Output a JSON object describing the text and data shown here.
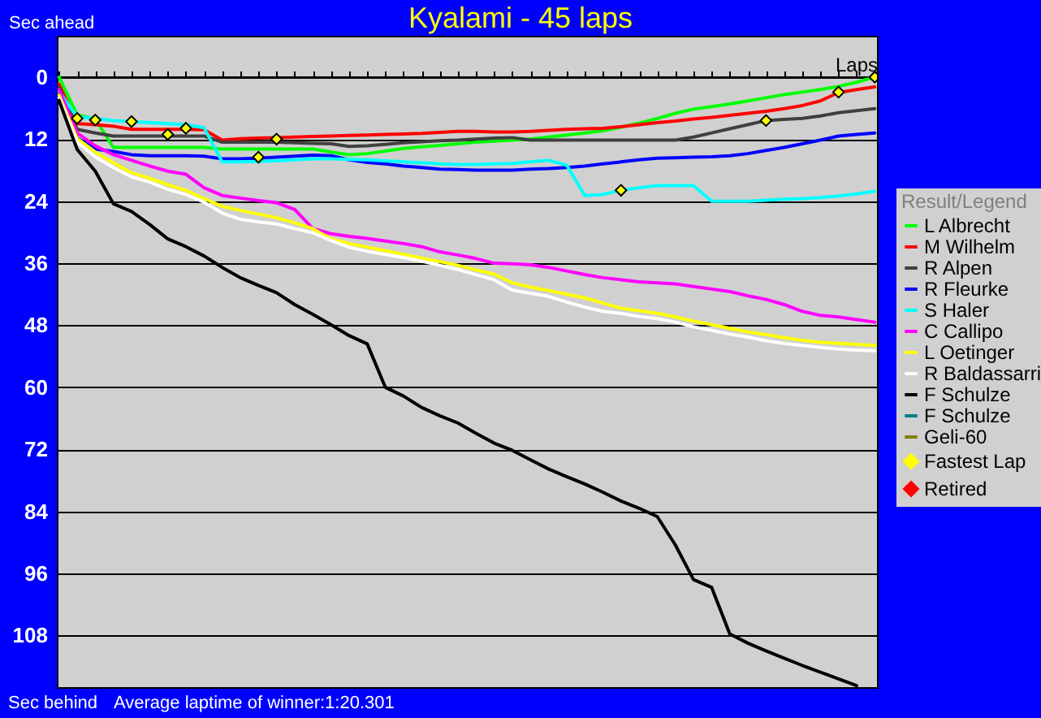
{
  "chart_data": {
    "type": "line",
    "title": "Kyalami - 45 laps",
    "ylabel": "Sec ahead",
    "xlabel": "Laps",
    "legend_title": "Result/Legend",
    "annotations": [
      "Sec behind",
      "Average laptime of winner:1:20.301"
    ],
    "categories": [
      null,
      null,
      null,
      null,
      null,
      null,
      null,
      null,
      null,
      null,
      null,
      null,
      null,
      null,
      null,
      null,
      null,
      null,
      null,
      null,
      null,
      null,
      null,
      null,
      null,
      null,
      null,
      null,
      null,
      null,
      null,
      null,
      null,
      null,
      null,
      null,
      null,
      null,
      null,
      null,
      null,
      null,
      null,
      null,
      null,
      null
    ],
    "ylim": [
      118,
      -8
    ],
    "yticks": [
      0,
      12,
      24,
      36,
      48,
      60,
      72,
      84,
      96,
      108
    ],
    "grid": "y",
    "legend": "right",
    "line_style": "solid",
    "series": [
      {
        "name": "L Albrecht",
        "color": "#00ff00",
        "values": [
          0,
          7.3,
          8.1,
          13.6,
          13.6,
          13.6,
          13.6,
          13.6,
          13.6,
          13.9,
          13.9,
          13.9,
          13.9,
          13.9,
          13.9,
          14.5,
          15,
          14.8,
          14.3,
          13.8,
          13.5,
          13.2,
          12.9,
          12.6,
          12.4,
          12.2,
          12,
          11.6,
          11.2,
          10.8,
          10.4,
          9.7,
          8.9,
          8,
          7,
          6.2,
          5.7,
          5.2,
          4.6,
          4,
          3.4,
          2.9,
          2.4,
          1.8,
          1,
          0
        ]
      },
      {
        "name": "M Wilhelm",
        "color": "#ff0000",
        "values": [
          1.4,
          9,
          9.2,
          9.5,
          10.1,
          10.1,
          10.1,
          10.1,
          10.2,
          12.2,
          11.9,
          11.8,
          11.7,
          11.6,
          11.5,
          11.4,
          11.3,
          11.2,
          11.1,
          11,
          10.9,
          10.7,
          10.5,
          10.5,
          10.6,
          10.6,
          10.5,
          10.3,
          10.1,
          10,
          9.9,
          9.6,
          9.2,
          8.8,
          8.5,
          8.1,
          7.8,
          7.4,
          7,
          6.6,
          6.1,
          5.5,
          4.6,
          3,
          2.4,
          1.9
        ]
      },
      {
        "name": "R Alpen",
        "color": "#404040",
        "values": [
          2,
          10.1,
          10.8,
          11.4,
          11.4,
          11.4,
          11.4,
          11.4,
          11.4,
          12.6,
          12.6,
          12.6,
          12.6,
          12.7,
          12.8,
          12.9,
          13.4,
          13.3,
          13,
          12.7,
          12.5,
          12.3,
          12.2,
          12,
          11.8,
          11.7,
          12.2,
          12.2,
          12.2,
          12.2,
          12.2,
          12.2,
          12.2,
          12.2,
          12.2,
          11.6,
          10.8,
          10,
          9.2,
          8.4,
          8.2,
          8,
          7.5,
          6.9,
          6.5,
          6.1
        ]
      },
      {
        "name": "R Fleurke",
        "color": "#0000ff",
        "values": [
          2.4,
          11.8,
          13.9,
          14.4,
          15,
          15.2,
          15.2,
          15.2,
          15.3,
          15.8,
          15.8,
          15.7,
          15.5,
          15.3,
          15.1,
          15.2,
          16,
          16.5,
          16.8,
          17.2,
          17.5,
          17.8,
          17.9,
          18,
          18,
          18,
          17.8,
          17.7,
          17.5,
          17.2,
          16.8,
          16.4,
          16,
          15.7,
          15.6,
          15.5,
          15.4,
          15.2,
          14.8,
          14.2,
          13.6,
          12.9,
          12.2,
          11.4,
          11.1,
          10.8
        ]
      },
      {
        "name": "S Haler",
        "color": "#00ffff",
        "values": [
          2.8,
          7.7,
          8,
          8.4,
          8.6,
          8.8,
          9,
          9.2,
          9.8,
          16.4,
          16.4,
          16.3,
          16.2,
          16,
          15.8,
          15.8,
          15.9,
          16,
          16.2,
          16.4,
          16.6,
          16.8,
          16.9,
          16.9,
          16.8,
          16.7,
          16.4,
          16.1,
          17,
          22.9,
          22.7,
          21.9,
          21.4,
          21,
          21,
          21,
          24,
          24,
          24,
          23.8,
          23.6,
          23.5,
          23.3,
          23,
          22.6,
          22.1
        ]
      },
      {
        "name": "C Callipo",
        "color": "#ff00ff",
        "values": [
          2.4,
          10.8,
          13.3,
          15,
          16.1,
          17.2,
          18.2,
          18.8,
          21.4,
          22.9,
          23.4,
          23.9,
          24.3,
          25.6,
          29.3,
          30.3,
          30.8,
          31.2,
          31.7,
          32.2,
          32.8,
          33.8,
          34.4,
          35.1,
          36,
          36.1,
          36.3,
          36.8,
          37.5,
          38.2,
          38.8,
          39.2,
          39.6,
          39.8,
          40,
          40.5,
          41,
          41.5,
          42.3,
          43,
          44,
          45.3,
          46.1,
          46.4,
          46.9,
          47.4
        ]
      },
      {
        "name": "L Oetinger",
        "color": "#ffff00",
        "values": [
          3.5,
          11.9,
          14.5,
          16.6,
          18.5,
          19.6,
          20.8,
          21.9,
          23.5,
          25,
          25.8,
          26.5,
          27.2,
          28.2,
          29.3,
          31.3,
          32.2,
          32.9,
          33.6,
          34.3,
          35,
          35.7,
          36.4,
          37.3,
          38.1,
          39.8,
          40.6,
          41.3,
          42,
          42.7,
          43.7,
          44.7,
          45.2,
          45.7,
          46.4,
          47.2,
          47.9,
          48.6,
          49.3,
          49.8,
          50.4,
          50.9,
          51.3,
          51.5,
          51.7,
          51.9
        ]
      },
      {
        "name": "R Baldassarri",
        "color": "#ffffff",
        "values": [
          4,
          12.6,
          15.4,
          17.5,
          19.3,
          20.3,
          21.7,
          22.7,
          24.2,
          26.3,
          27.5,
          28,
          28.4,
          29.3,
          30.1,
          31.6,
          32.9,
          33.7,
          34.3,
          34.9,
          35.6,
          36.4,
          37.2,
          38.2,
          39.2,
          41.2,
          41.8,
          42.4,
          43.5,
          44.5,
          45.3,
          45.7,
          46.3,
          46.7,
          47.4,
          48.3,
          49,
          49.7,
          50.3,
          51,
          51.5,
          51.9,
          52.3,
          52.6,
          52.8,
          52.9
        ]
      },
      {
        "name": "F Schulze",
        "color": "#000000",
        "values": [
          4.5,
          14,
          18.2,
          24.5,
          26,
          28.5,
          31.3,
          32.8,
          34.6,
          36.8,
          38.8,
          40.3,
          41.7,
          44,
          45.9,
          47.9,
          50,
          51.6,
          60,
          61.7,
          63.9,
          65.5,
          66.9,
          68.9,
          70.8,
          72.2,
          74,
          75.8,
          77.3,
          78.7,
          80.3,
          82,
          83.4,
          85,
          90.5,
          97.2,
          98.7,
          107.7,
          109.5,
          111,
          112.4,
          113.8,
          115.1,
          116.4,
          117.7,
          null
        ]
      },
      {
        "name": "F Schulze",
        "color": "#008080",
        "values": [
          null,
          null,
          null,
          null,
          null,
          null,
          null,
          null,
          null,
          null,
          null,
          null,
          null,
          null,
          null,
          null,
          null,
          null,
          null,
          null,
          null,
          null,
          null,
          null,
          null,
          null,
          null,
          null,
          null,
          null,
          null,
          null,
          null,
          null,
          null,
          null,
          null,
          null,
          null,
          null,
          null,
          null,
          null,
          null,
          null,
          null
        ]
      },
      {
        "name": "Geli-60",
        "color": "#808000",
        "values": [
          null,
          null,
          null,
          null,
          null,
          null,
          null,
          null,
          null,
          null,
          null,
          null,
          null,
          null,
          null,
          null,
          null,
          null,
          null,
          null,
          null,
          null,
          null,
          null,
          null,
          null,
          null,
          null,
          null,
          null,
          null,
          null,
          null,
          null,
          null,
          null,
          null,
          null,
          null,
          null,
          null,
          null,
          null,
          null,
          null,
          null
        ]
      },
      {
        "name": "Fastest Lap",
        "type": "scatter",
        "marker": "diamond",
        "color": "#ffff00",
        "values": [
          null,
          8,
          8.3,
          null,
          8.6,
          null,
          11.1,
          9.9,
          null,
          null,
          null,
          15.5,
          12,
          null,
          null,
          null,
          null,
          null,
          null,
          null,
          null,
          null,
          null,
          null,
          null,
          null,
          null,
          null,
          null,
          null,
          null,
          21.9,
          null,
          null,
          null,
          null,
          null,
          null,
          null,
          8.4,
          null,
          null,
          null,
          2.9,
          null,
          0
        ]
      },
      {
        "name": "Retired",
        "type": "scatter",
        "marker": "diamond",
        "color": "#ff0000",
        "values": [
          null,
          null,
          null,
          null,
          null,
          null,
          null,
          null,
          null,
          null,
          null,
          null,
          null,
          null,
          null,
          null,
          null,
          null,
          null,
          null,
          null,
          null,
          null,
          null,
          null,
          null,
          null,
          null,
          null,
          null,
          null,
          null,
          null,
          null,
          null,
          null,
          null,
          null,
          null,
          null,
          null,
          null,
          null,
          null,
          null,
          null
        ]
      }
    ]
  }
}
